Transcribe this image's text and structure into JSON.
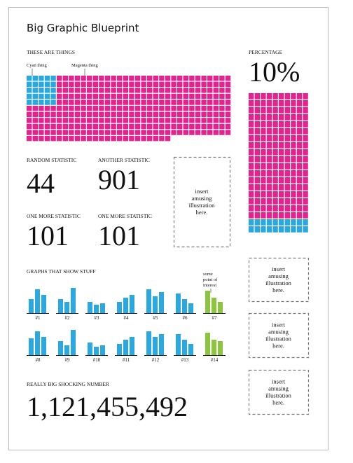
{
  "header": {
    "title": "Big Graphic Blueprint"
  },
  "things": {
    "title": "THESE ARE THINGS",
    "labels": [
      "Cyan thing",
      "Magenta thing"
    ],
    "values": [
      25,
      339
    ],
    "colors": [
      "#2aa9e0",
      "#e5238e"
    ]
  },
  "percentage": {
    "title": "PERCENTAGE",
    "value": 10,
    "value_label": "10%",
    "colors": [
      "#e5238e",
      "#2aa9e0"
    ]
  },
  "stats": [
    {
      "label": "RANDOM STATISTIC",
      "value": "44"
    },
    {
      "label": "ANOTHER STATISTIC",
      "value": "901"
    },
    {
      "label": "ONE MORE STATISTIC",
      "value": "101"
    },
    {
      "label": "ONE MORE STATISTIC",
      "value": "101"
    }
  ],
  "graphs": {
    "title": "GRAPHS THAT SHOW STUFF",
    "annotation": [
      "some",
      "point of",
      "interest"
    ],
    "items": [
      {
        "label": "#1",
        "values": [
          20,
          34,
          26
        ],
        "color": "#2aa9e0"
      },
      {
        "label": "#2",
        "values": [
          20,
          16,
          36
        ],
        "color": "#2aa9e0"
      },
      {
        "label": "#3",
        "values": [
          16,
          12,
          14
        ],
        "color": "#2aa9e0"
      },
      {
        "label": "#4",
        "values": [
          16,
          22,
          26
        ],
        "color": "#2aa9e0"
      },
      {
        "label": "#5",
        "values": [
          34,
          24,
          30
        ],
        "color": "#2aa9e0"
      },
      {
        "label": "#6",
        "values": [
          28,
          20,
          14
        ],
        "color": "#2aa9e0"
      },
      {
        "label": "#7",
        "values": [
          32,
          22,
          16
        ],
        "color": "#8cc63f"
      },
      {
        "label": "#8",
        "values": [
          24,
          34,
          26
        ],
        "color": "#2aa9e0"
      },
      {
        "label": "#9",
        "values": [
          20,
          14,
          36
        ],
        "color": "#2aa9e0"
      },
      {
        "label": "#10",
        "values": [
          18,
          12,
          14
        ],
        "color": "#2aa9e0"
      },
      {
        "label": "#11",
        "values": [
          16,
          22,
          26
        ],
        "color": "#2aa9e0"
      },
      {
        "label": "#12",
        "values": [
          34,
          26,
          30
        ],
        "color": "#2aa9e0"
      },
      {
        "label": "#13",
        "values": [
          30,
          22,
          16
        ],
        "color": "#2aa9e0"
      },
      {
        "label": "#14",
        "values": [
          32,
          22,
          20
        ],
        "color": "#8cc63f"
      }
    ]
  },
  "big_number": {
    "label": "REALLY BIG SHOCKING NUMBER",
    "value": "1,121,455,492"
  },
  "placeholders": [
    [
      "insert",
      "amusing",
      "illustration",
      "here."
    ],
    [
      "insert",
      "amusing",
      "illustration",
      "here."
    ],
    [
      "insert",
      "amusing",
      "illustration",
      "here."
    ],
    [
      "insert",
      "amusing",
      "illustration",
      "here."
    ]
  ]
}
